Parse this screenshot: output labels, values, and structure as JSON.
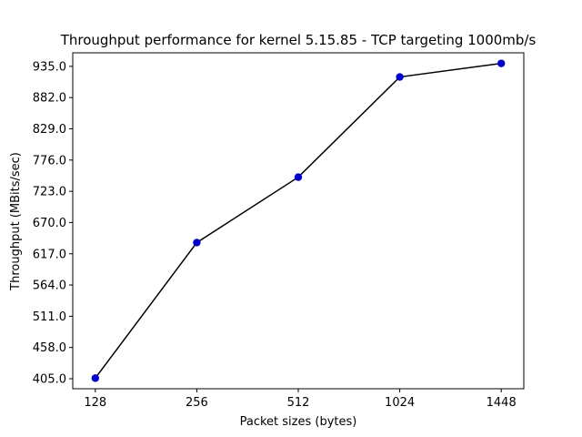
{
  "chart_data": {
    "type": "line",
    "title": "Throughput performance for kernel 5.15.85 - TCP targeting 1000mb/s",
    "xlabel": "Packet sizes (bytes)",
    "ylabel": "Throughput (MBits/sec)",
    "categories": [
      "128",
      "256",
      "512",
      "1024",
      "1448"
    ],
    "series": [
      {
        "values": [
          406,
          636,
          747,
          917,
          940
        ],
        "line_color": "#000000",
        "marker_color": "#0000cc"
      }
    ],
    "yticks": [
      "405.0",
      "458.0",
      "511.0",
      "564.0",
      "617.0",
      "670.0",
      "723.0",
      "776.0",
      "829.0",
      "882.0",
      "935.0"
    ],
    "ylim": [
      388,
      958
    ],
    "grid": false,
    "legend": "none"
  }
}
